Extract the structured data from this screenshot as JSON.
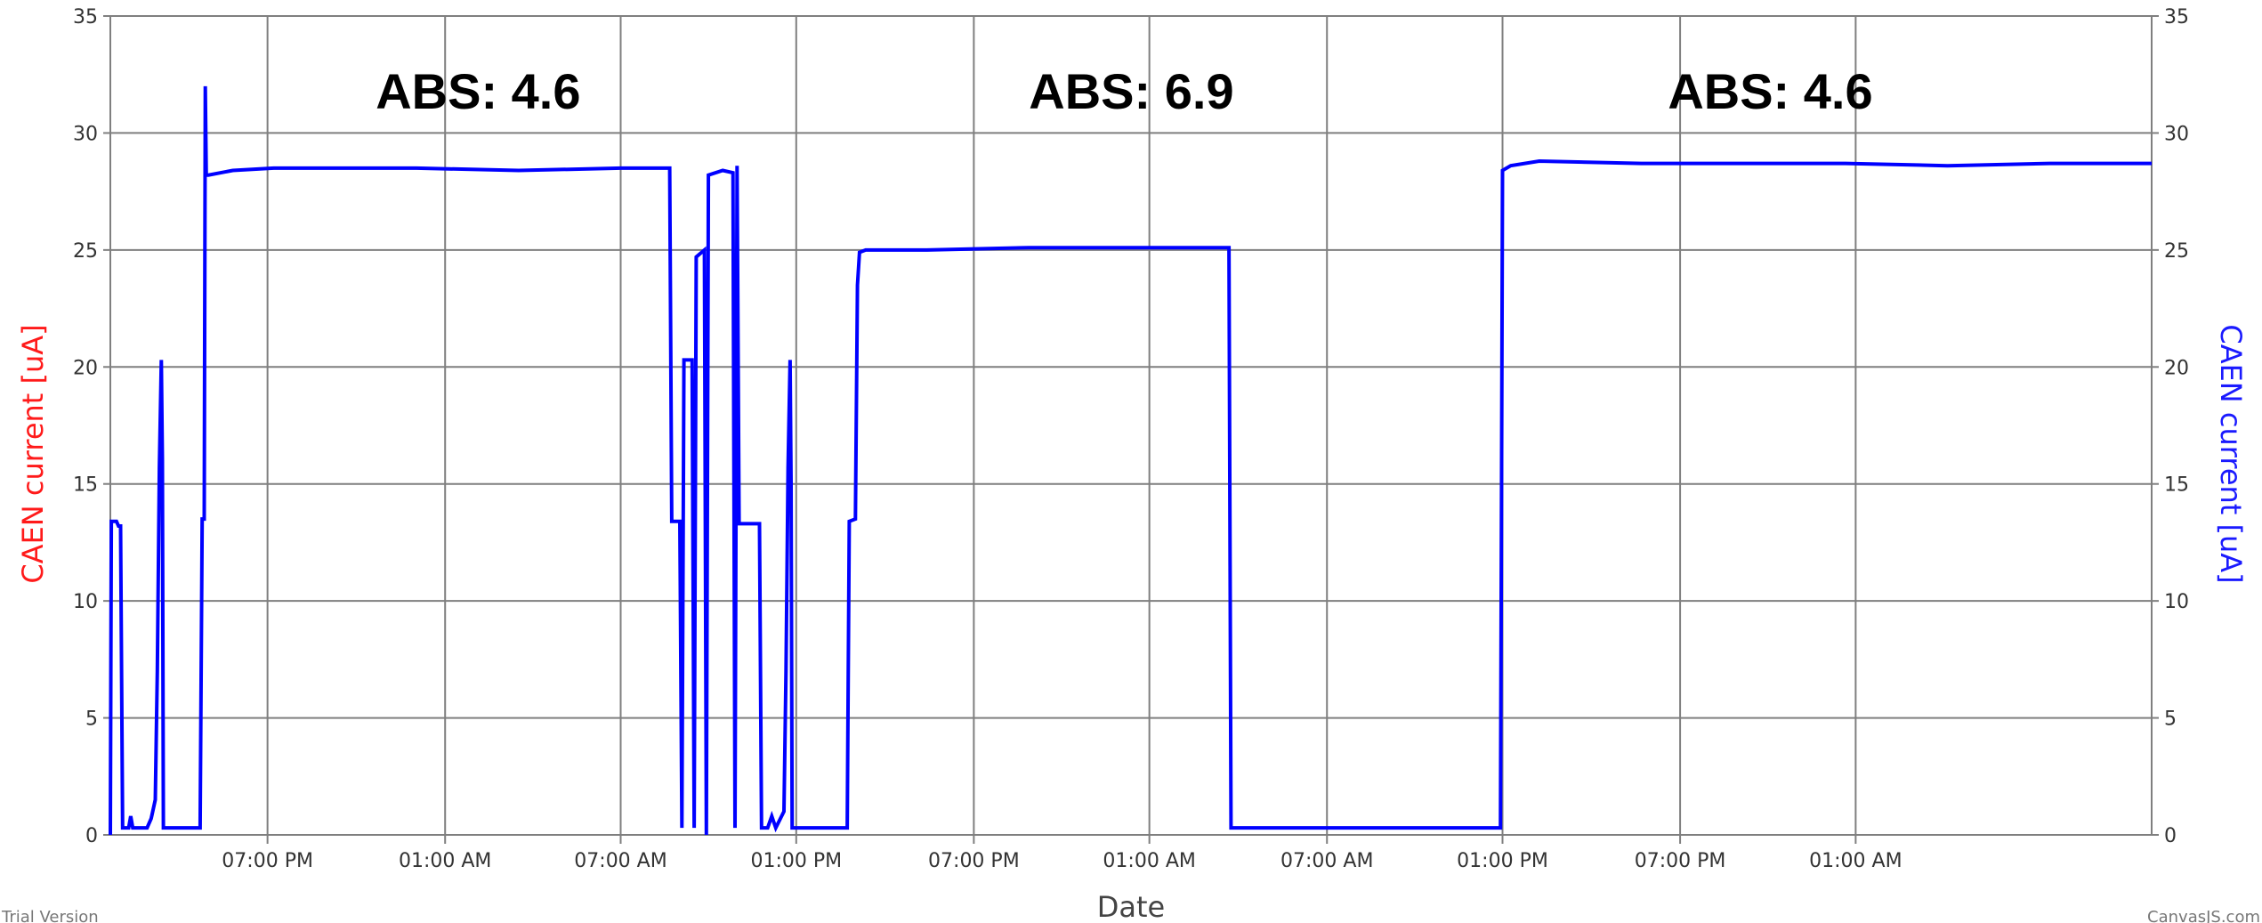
{
  "chart_data": {
    "type": "line",
    "title": "",
    "xlabel": "Date",
    "ylabel_left": "CAEN current [uA]",
    "ylabel_right": "CAEN current [uA]",
    "ylim": [
      0,
      35
    ],
    "xlim": [
      0,
      1000
    ],
    "y_ticks": [
      "0",
      "5",
      "10",
      "15",
      "20",
      "25",
      "30",
      "35"
    ],
    "y_tick_values": [
      0,
      5,
      10,
      15,
      20,
      25,
      30,
      35
    ],
    "x_ticks": [
      {
        "x": 77,
        "label": "07:00 PM"
      },
      {
        "x": 164,
        "label": "01:00 AM"
      },
      {
        "x": 250,
        "label": "07:00 AM"
      },
      {
        "x": 336,
        "label": "01:00 PM"
      },
      {
        "x": 423,
        "label": "07:00 PM"
      },
      {
        "x": 509,
        "label": "01:00 AM"
      },
      {
        "x": 596,
        "label": "07:00 AM"
      },
      {
        "x": 682,
        "label": "01:00 PM"
      },
      {
        "x": 769,
        "label": "07:00 PM"
      },
      {
        "x": 855,
        "label": "01:00 AM"
      }
    ],
    "grid": true,
    "legend": "none",
    "annotations": [
      {
        "text": "ABS: 4.6",
        "x": 130,
        "y": 31.8
      },
      {
        "text": "ABS: 6.9",
        "x": 450,
        "y": 31.8
      },
      {
        "text": "ABS: 4.6",
        "x": 763,
        "y": 31.8
      }
    ],
    "series": [
      {
        "color": "#0000ff",
        "points": [
          [
            0,
            0
          ],
          [
            0.5,
            13.4
          ],
          [
            3,
            13.4
          ],
          [
            4,
            13.2
          ],
          [
            5,
            13.2
          ],
          [
            6,
            0.3
          ],
          [
            9,
            0.3
          ],
          [
            10,
            0.8
          ],
          [
            11,
            0.3
          ],
          [
            18,
            0.3
          ],
          [
            20,
            0.7
          ],
          [
            22,
            1.5
          ],
          [
            23,
            7
          ],
          [
            24,
            15.7
          ],
          [
            25,
            20.3
          ],
          [
            25.5,
            16
          ],
          [
            26,
            0.3
          ],
          [
            44,
            0.3
          ],
          [
            45,
            13.5
          ],
          [
            46,
            13.5
          ],
          [
            46.5,
            32
          ],
          [
            47,
            28.2
          ],
          [
            48,
            28.2
          ],
          [
            60,
            28.4
          ],
          [
            80,
            28.5
          ],
          [
            150,
            28.5
          ],
          [
            200,
            28.4
          ],
          [
            250,
            28.5
          ],
          [
            274,
            28.5
          ],
          [
            275,
            13.4
          ],
          [
            279,
            13.4
          ],
          [
            280,
            0.3
          ],
          [
            281,
            20.3
          ],
          [
            285,
            20.3
          ],
          [
            286,
            0.3
          ],
          [
            287,
            24.7
          ],
          [
            291,
            25
          ],
          [
            292,
            0
          ],
          [
            293,
            28.2
          ],
          [
            300,
            28.4
          ],
          [
            305,
            28.3
          ],
          [
            306,
            0.3
          ],
          [
            307,
            28.6
          ],
          [
            308,
            13.3
          ],
          [
            318,
            13.3
          ],
          [
            319,
            0.3
          ],
          [
            322,
            0.3
          ],
          [
            324,
            0.8
          ],
          [
            326,
            0.3
          ],
          [
            330,
            1
          ],
          [
            331,
            7
          ],
          [
            332,
            15.7
          ],
          [
            333,
            20.3
          ],
          [
            333.5,
            15
          ],
          [
            334,
            0.3
          ],
          [
            361,
            0.3
          ],
          [
            362,
            13.4
          ],
          [
            365,
            13.5
          ],
          [
            366,
            23.5
          ],
          [
            367,
            24.9
          ],
          [
            370,
            25
          ],
          [
            400,
            25
          ],
          [
            450,
            25.1
          ],
          [
            500,
            25.1
          ],
          [
            530,
            25.1
          ],
          [
            548,
            25.1
          ],
          [
            549,
            0.3
          ],
          [
            600,
            0.3
          ],
          [
            650,
            0.3
          ],
          [
            681,
            0.3
          ],
          [
            682,
            28.4
          ],
          [
            686,
            28.6
          ],
          [
            700,
            28.8
          ],
          [
            750,
            28.7
          ],
          [
            800,
            28.7
          ],
          [
            850,
            28.7
          ],
          [
            900,
            28.6
          ],
          [
            950,
            28.7
          ],
          [
            1000,
            28.7
          ]
        ]
      }
    ]
  },
  "footer": {
    "left_text": "Trial Version",
    "right_text": "CanvasJS.com"
  }
}
